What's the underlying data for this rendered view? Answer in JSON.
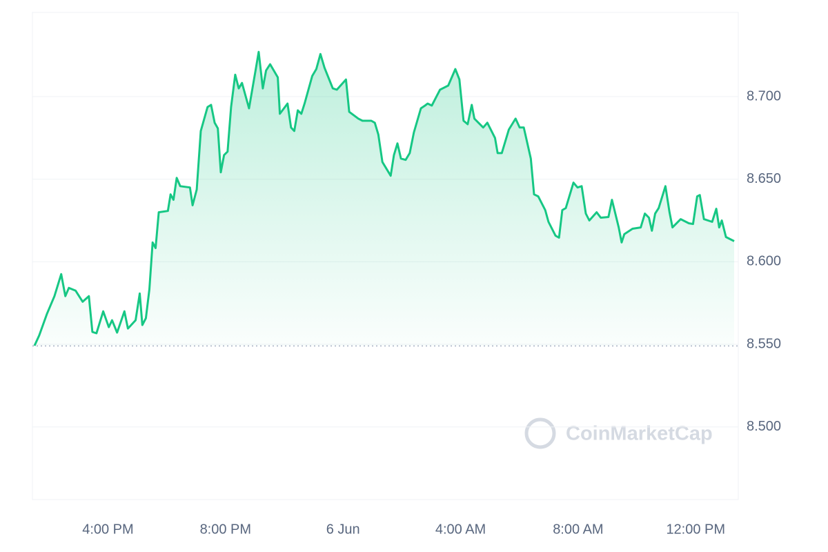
{
  "chart_data": {
    "type": "line",
    "watermark": "CoinMarketCap",
    "xlim": [
      13.43,
      37.45
    ],
    "xticks": [
      {
        "value": 16,
        "label": "4:00 PM"
      },
      {
        "value": 20,
        "label": "8:00 PM"
      },
      {
        "value": 24,
        "label": "6 Jun"
      },
      {
        "value": 28,
        "label": "4:00 AM"
      },
      {
        "value": 32,
        "label": "8:00 AM"
      },
      {
        "value": 36,
        "label": "12:00 PM"
      }
    ],
    "ylim": [
      8.456,
      8.751
    ],
    "yticks": [
      {
        "value": 8.5,
        "label": "8.500"
      },
      {
        "value": 8.55,
        "label": "8.550"
      },
      {
        "value": 8.6,
        "label": "8.600"
      },
      {
        "value": 8.65,
        "label": "8.650"
      },
      {
        "value": 8.7,
        "label": "8.700"
      }
    ],
    "baseline": 8.549,
    "grid": true,
    "x": [
      13.5,
      13.66,
      13.92,
      14.18,
      14.41,
      14.55,
      14.67,
      14.9,
      15.14,
      15.35,
      15.47,
      15.61,
      15.84,
      16.03,
      16.14,
      16.31,
      16.56,
      16.68,
      16.94,
      17.08,
      17.17,
      17.29,
      17.41,
      17.52,
      17.62,
      17.73,
      18.04,
      18.13,
      18.23,
      18.34,
      18.46,
      18.79,
      18.88,
      19.02,
      19.16,
      19.39,
      19.51,
      19.63,
      19.74,
      19.84,
      19.95,
      20.07,
      20.19,
      20.33,
      20.45,
      20.56,
      20.8,
      21.03,
      21.13,
      21.27,
      21.38,
      21.52,
      21.78,
      21.85,
      22.11,
      22.23,
      22.34,
      22.46,
      22.58,
      22.69,
      22.95,
      23.09,
      23.23,
      23.37,
      23.65,
      23.79,
      24.1,
      24.21,
      24.52,
      24.66,
      24.96,
      25.08,
      25.2,
      25.34,
      25.62,
      25.73,
      25.85,
      25.97,
      26.13,
      26.27,
      26.41,
      26.65,
      26.79,
      26.88,
      27.02,
      27.3,
      27.58,
      27.82,
      27.96,
      28.1,
      28.24,
      28.38,
      28.47,
      28.77,
      28.91,
      29.17,
      29.26,
      29.4,
      29.64,
      29.87,
      30.01,
      30.15,
      30.39,
      30.5,
      30.64,
      30.88,
      30.99,
      31.23,
      31.35,
      31.46,
      31.58,
      31.84,
      31.98,
      32.12,
      32.26,
      32.38,
      32.63,
      32.77,
      33.03,
      33.15,
      33.38,
      33.48,
      33.57,
      33.85,
      34.13,
      34.27,
      34.41,
      34.51,
      34.62,
      34.74,
      34.97,
      35.11,
      35.21,
      35.49,
      35.77,
      35.91,
      36.05,
      36.14,
      36.28,
      36.56,
      36.7,
      36.8,
      36.89,
      37.03,
      37.31
    ],
    "series": [
      {
        "color": "#16c784",
        "values": [
          8.5492,
          8.5554,
          8.5683,
          8.5792,
          8.5925,
          8.5792,
          8.5842,
          8.5825,
          8.5758,
          8.5792,
          8.5575,
          8.5567,
          8.57,
          8.5604,
          8.5646,
          8.5571,
          8.57,
          8.5596,
          8.5646,
          8.5808,
          8.5617,
          8.5658,
          8.5833,
          8.6117,
          8.6083,
          8.63,
          8.6308,
          8.6408,
          8.6375,
          8.6508,
          8.6458,
          8.645,
          8.6342,
          8.6437,
          8.6792,
          8.6937,
          8.695,
          8.6842,
          8.6808,
          8.6542,
          8.6646,
          8.6667,
          8.6937,
          8.7133,
          8.705,
          8.7083,
          8.6929,
          8.7167,
          8.7271,
          8.705,
          8.7158,
          8.7196,
          8.7117,
          8.6896,
          8.6958,
          8.6813,
          8.6792,
          8.6917,
          8.6896,
          8.6958,
          8.7125,
          8.7167,
          8.7258,
          8.7175,
          8.705,
          8.7042,
          8.7104,
          8.6908,
          8.6867,
          8.6854,
          8.6854,
          8.6842,
          8.6771,
          8.6604,
          8.6521,
          8.6646,
          8.6717,
          8.6625,
          8.6617,
          8.6658,
          8.6783,
          8.6929,
          8.6946,
          8.6958,
          8.6946,
          8.7042,
          8.7067,
          8.7167,
          8.7104,
          8.6854,
          8.6833,
          8.695,
          8.6867,
          8.6813,
          8.6842,
          8.675,
          8.6658,
          8.6658,
          8.68,
          8.6867,
          8.6813,
          8.6813,
          8.6625,
          8.6408,
          8.6396,
          8.6313,
          8.6242,
          8.6158,
          8.6146,
          8.6313,
          8.6325,
          8.6479,
          8.645,
          8.6458,
          8.6292,
          8.625,
          8.63,
          8.6267,
          8.6271,
          8.6375,
          8.6208,
          8.6117,
          8.6167,
          8.62,
          8.6208,
          8.6292,
          8.6267,
          8.6188,
          8.6292,
          8.6325,
          8.6458,
          8.63,
          8.6208,
          8.6258,
          8.6233,
          8.6229,
          8.6396,
          8.6404,
          8.6258,
          8.6242,
          8.6321,
          8.6208,
          8.625,
          8.615,
          8.6125
        ]
      }
    ]
  }
}
